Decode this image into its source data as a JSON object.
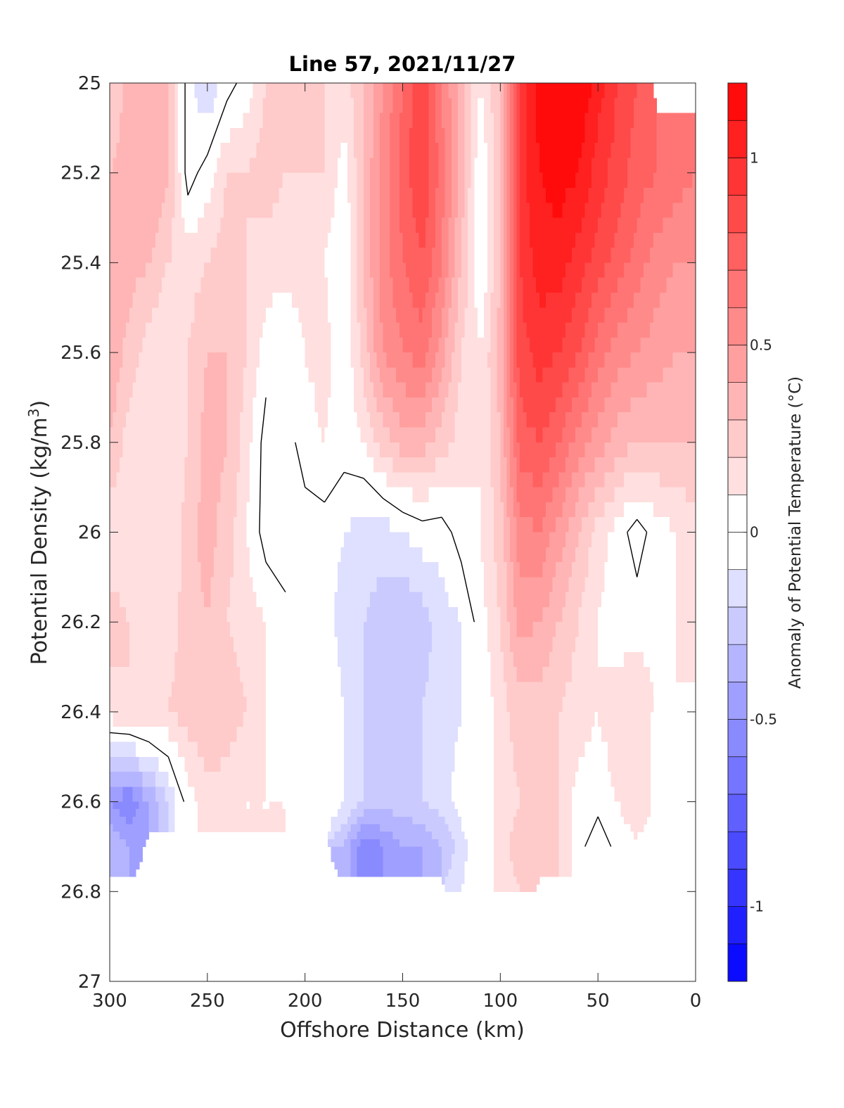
{
  "chart_data": {
    "type": "heatmap",
    "subtype": "filled-contour",
    "title": "Line 57, 2021/11/27",
    "xlabel": "Offshore Distance (km)",
    "ylabel": "Potential Density (kg/m3)",
    "ylabel_main": "Potential Density (kg/m",
    "ylabel_sup": "3",
    "ylabel_close": ")",
    "xlim": [
      300,
      0
    ],
    "ylim": [
      25,
      27
    ],
    "x_reversed": true,
    "y_reversed": true,
    "xticks": [
      300,
      250,
      200,
      150,
      100,
      50,
      0
    ],
    "xtick_labels": [
      "300",
      "250",
      "200",
      "150",
      "100",
      "50",
      "0"
    ],
    "yticks": [
      25,
      25.2,
      25.4,
      25.6,
      25.8,
      26,
      26.2,
      26.4,
      26.6,
      26.8,
      27
    ],
    "ytick_labels": [
      "25",
      "25.2",
      "25.4",
      "25.6",
      "25.8",
      "26",
      "26.2",
      "26.4",
      "26.6",
      "26.8",
      "27"
    ],
    "grid": false,
    "colorbar": {
      "label": "Anomaly of Potential Temperature (°C)",
      "range": [
        -1.2,
        1.2
      ],
      "step": 0.1,
      "ticks": [
        -1,
        -0.5,
        0,
        0.5,
        1
      ],
      "tick_labels": [
        "-1",
        "-0.5",
        "0",
        "0.5",
        "1"
      ]
    },
    "contour_line_levels": [
      0
    ],
    "field": {
      "x": [
        300,
        290,
        280,
        270,
        260,
        250,
        240,
        230,
        220,
        210,
        200,
        190,
        180,
        170,
        160,
        150,
        140,
        130,
        120,
        110,
        100,
        90,
        80,
        70,
        60,
        50,
        40,
        30,
        20,
        10,
        0
      ],
      "y": [
        25.0,
        25.2,
        25.4,
        25.6,
        25.8,
        26.0,
        26.2,
        26.4,
        26.6,
        26.7,
        26.8
      ],
      "values": [
        [
          0.2,
          0.35,
          0.4,
          0.3,
          -0.05,
          -0.2,
          -0.05,
          0.05,
          0.2,
          0.25,
          0.25,
          0.2,
          0.15,
          0.3,
          0.5,
          0.7,
          0.9,
          0.6,
          0.35,
          0.1,
          0.3,
          0.9,
          1.15,
          1.2,
          1.2,
          1.05,
          0.9,
          0.8,
          null,
          null,
          null
        ],
        [
          0.3,
          0.35,
          0.4,
          0.3,
          -0.05,
          0.05,
          0.2,
          0.2,
          0.25,
          0.2,
          0.2,
          0.2,
          0.05,
          0.3,
          0.55,
          0.75,
          0.9,
          0.65,
          0.35,
          0.0,
          0.3,
          0.95,
          1.1,
          1.15,
          1.1,
          0.95,
          0.85,
          0.75,
          0.7,
          0.65,
          0.6
        ],
        [
          0.4,
          0.35,
          0.3,
          0.2,
          0.15,
          0.2,
          0.25,
          0.2,
          0.15,
          0.15,
          0.15,
          0.1,
          0.0,
          0.3,
          0.55,
          0.7,
          0.8,
          0.6,
          0.3,
          0.0,
          0.3,
          0.9,
          1.05,
          1.05,
          0.95,
          0.85,
          0.75,
          0.65,
          0.55,
          0.5,
          0.5
        ],
        [
          0.4,
          0.25,
          0.15,
          0.1,
          0.2,
          0.3,
          0.3,
          0.2,
          0.05,
          0.0,
          0.1,
          0.15,
          0.0,
          0.25,
          0.5,
          0.6,
          0.65,
          0.45,
          0.2,
          0.1,
          0.35,
          0.85,
          0.95,
          0.9,
          0.8,
          0.65,
          0.55,
          0.5,
          0.45,
          0.4,
          0.4
        ],
        [
          0.3,
          0.15,
          0.2,
          0.1,
          0.2,
          0.35,
          0.3,
          0.15,
          -0.05,
          -0.05,
          0.05,
          0.1,
          0.05,
          0.1,
          0.25,
          0.35,
          0.35,
          0.25,
          0.15,
          0.1,
          0.3,
          0.75,
          0.8,
          0.7,
          0.55,
          0.45,
          0.35,
          0.3,
          0.3,
          0.3,
          0.3
        ],
        [
          0.1,
          0.15,
          0.1,
          0.1,
          0.25,
          0.35,
          0.25,
          0.1,
          -0.05,
          -0.1,
          -0.05,
          -0.05,
          -0.1,
          -0.15,
          -0.15,
          -0.1,
          -0.05,
          -0.05,
          0.05,
          0.1,
          0.25,
          0.55,
          0.6,
          0.45,
          0.3,
          0.15,
          0.05,
          -0.05,
          0.05,
          0.1,
          0.15
        ],
        [
          0.25,
          0.2,
          0.15,
          0.15,
          0.25,
          0.3,
          0.2,
          0.15,
          0.1,
          0.05,
          0.0,
          -0.05,
          -0.15,
          -0.2,
          -0.25,
          -0.3,
          -0.25,
          -0.15,
          -0.1,
          0.05,
          0.2,
          0.45,
          0.4,
          0.3,
          0.2,
          0.1,
          0.05,
          0.05,
          0.05,
          0.1,
          0.15
        ],
        [
          0.15,
          0.2,
          0.2,
          0.2,
          0.25,
          0.3,
          0.25,
          0.2,
          0.1,
          0.05,
          0.05,
          0.0,
          -0.1,
          -0.2,
          -0.2,
          -0.2,
          -0.2,
          -0.15,
          -0.1,
          0.0,
          0.15,
          0.25,
          0.25,
          0.2,
          0.15,
          0.1,
          0.15,
          0.2,
          null,
          null,
          null
        ],
        [
          -0.5,
          -0.6,
          -0.4,
          -0.2,
          0.05,
          0.15,
          0.15,
          0.1,
          0.1,
          0.1,
          0.05,
          0.0,
          -0.1,
          -0.2,
          -0.25,
          -0.25,
          -0.2,
          -0.15,
          -0.05,
          0.0,
          0.15,
          0.2,
          0.25,
          0.2,
          0.05,
          0.05,
          0.1,
          0.15,
          null,
          null,
          null
        ],
        [
          -0.3,
          -0.4,
          null,
          null,
          null,
          null,
          null,
          null,
          null,
          null,
          null,
          null,
          -0.3,
          -0.6,
          -0.5,
          -0.4,
          -0.4,
          -0.3,
          -0.15,
          0.0,
          0.15,
          0.25,
          0.3,
          0.2,
          0.05,
          -0.1,
          0.05,
          null,
          null,
          null,
          null
        ],
        [
          null,
          null,
          null,
          null,
          null,
          null,
          null,
          null,
          null,
          null,
          null,
          null,
          null,
          null,
          null,
          null,
          null,
          null,
          -0.1,
          0.0,
          0.15,
          0.2,
          null,
          null,
          null,
          null,
          null,
          null,
          null,
          null,
          null
        ]
      ]
    }
  }
}
